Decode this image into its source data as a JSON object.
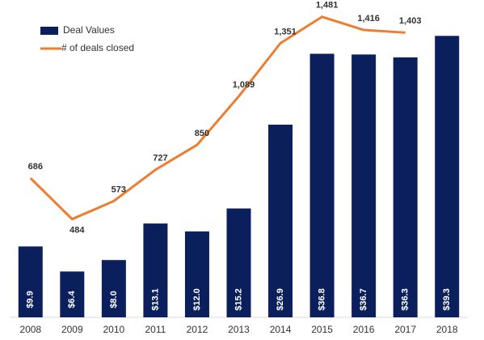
{
  "chart_data": {
    "type": "bar-line",
    "categories": [
      "2008",
      "2009",
      "2010",
      "2011",
      "2012",
      "2013",
      "2014",
      "2015",
      "2016",
      "2017",
      "2018"
    ],
    "series": [
      {
        "name": "Deal Values",
        "type": "bar",
        "color": "#0b1f5c",
        "values": [
          9.9,
          6.4,
          8.0,
          13.1,
          12.0,
          15.2,
          26.9,
          36.8,
          36.7,
          36.3,
          39.3
        ],
        "value_labels": [
          "$9.9",
          "$6.4",
          "$8.0",
          "$13.1",
          "$12.0",
          "$15.2",
          "$26.9",
          "$36.8",
          "$36.7",
          "$36.3",
          "$39.3"
        ]
      },
      {
        "name": "# of deals closed",
        "type": "line",
        "color": "#ed7d31",
        "axis": "y2",
        "values": [
          686,
          484,
          573,
          727,
          850,
          1089,
          1351,
          1481,
          1416,
          1403,
          null
        ],
        "value_labels": [
          "686",
          "484",
          "573",
          "727",
          "850",
          "1,089",
          "1,351",
          "1,481",
          "1,416",
          "1,403",
          null
        ]
      }
    ],
    "ylim": [
      0,
      42.5
    ],
    "y2lim": [
      0,
      1500
    ],
    "legend": "top-left"
  }
}
